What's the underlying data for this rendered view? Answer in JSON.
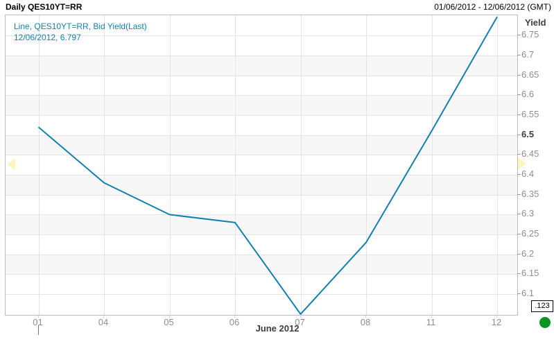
{
  "header": {
    "title": "Daily QES10YT=RR",
    "date_range": "01/06/2012 - 12/06/2012 (GMT)"
  },
  "legend": {
    "line1": "Line, QES10YT=RR, Bid Yield(Last)",
    "line2": "12/06/2012, 6.797"
  },
  "y_axis": {
    "title": "Yield",
    "emphasized_tick": 6.5
  },
  "x_axis": {
    "month_label": "June 2012"
  },
  "toolbar": {
    "precision_label": ".123"
  },
  "colors": {
    "line": "#117fb0",
    "legend_text": "#1480b2",
    "grid": "#e4e4e4",
    "frame": "#bdbdbd",
    "tick_text": "#8e8e8e",
    "emphasis_text": "#3f3f3f",
    "band": "#f7f7f7",
    "scroll_arrow": "#fbf6c0",
    "status_green": "#0a9421"
  },
  "chart_data": {
    "type": "line",
    "title": "Daily QES10YT=RR",
    "xlabel": "June 2012",
    "ylabel": "Yield",
    "categories": [
      "01",
      "04",
      "05",
      "06",
      "07",
      "08",
      "11",
      "12"
    ],
    "series": [
      {
        "name": "QES10YT=RR Bid Yield(Last)",
        "values": [
          6.52,
          6.38,
          6.3,
          6.28,
          6.05,
          6.23,
          6.51,
          6.797
        ]
      }
    ],
    "last_date": "12/06/2012",
    "last_value": 6.797,
    "yticks": [
      6.75,
      6.7,
      6.65,
      6.6,
      6.55,
      6.5,
      6.45,
      6.4,
      6.35,
      6.3,
      6.25,
      6.2,
      6.15,
      6.1
    ],
    "ylim": [
      6.048,
      6.801
    ],
    "grid": true,
    "legend_position": "top-left"
  }
}
